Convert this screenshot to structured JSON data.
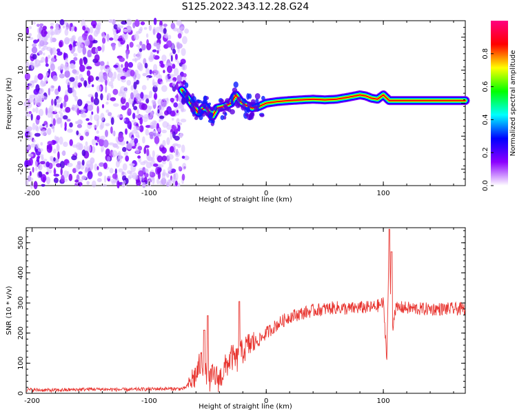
{
  "title": "S125.2022.343.12.28.G24",
  "chart_data": [
    {
      "type": "heatmap",
      "xlabel": "Height of straight line (km)",
      "ylabel": "Frequency (Hz)",
      "xlim": [
        -205,
        170
      ],
      "ylim": [
        -25,
        25
      ],
      "xticks": [
        -200,
        -100,
        0,
        100
      ],
      "xtick_labels": [
        "-200",
        "-100",
        "0",
        "100"
      ],
      "yticks": [
        -20,
        -10,
        0,
        10,
        20
      ],
      "ytick_labels": [
        "-20",
        "-10",
        "0",
        "10",
        "20"
      ],
      "colorbar": {
        "label": "Normalized spectral amplitude",
        "ticks": [
          0.0,
          0.2,
          0.4,
          0.6,
          0.8
        ],
        "tick_labels": [
          "0.0",
          "0.2",
          "0.4",
          "0.6",
          "0.8"
        ],
        "range": [
          0,
          1
        ],
        "colormap": [
          "#ffffff",
          "#8c00ff",
          "#0000ff",
          "#00ffff",
          "#00ff00",
          "#ffff00",
          "#ff0000",
          "#ff0080"
        ]
      },
      "noise_region_x": [
        -205,
        -68
      ],
      "ridge": {
        "x": [
          -72,
          -65,
          -58,
          -52,
          -46,
          -42,
          -36,
          -30,
          -26,
          -22,
          -18,
          -12,
          -6,
          0,
          10,
          20,
          30,
          40,
          50,
          60,
          70,
          80,
          85,
          90,
          95,
          100,
          105,
          110,
          130,
          150,
          170
        ],
        "freq": [
          4,
          0.5,
          -3,
          -1,
          -4,
          -1.5,
          -1,
          0,
          2.5,
          0.5,
          -0.5,
          -1.5,
          -1,
          0,
          0.5,
          0.8,
          1.0,
          1.2,
          1.0,
          1.2,
          1.8,
          2.5,
          2.2,
          1.5,
          1.2,
          2.5,
          0.8,
          0.8,
          0.8,
          0.8,
          0.8
        ]
      }
    },
    {
      "type": "line",
      "xlabel": "Height of straight line (km)",
      "ylabel": "SNR (10 * v/v)",
      "xlim": [
        -205,
        170
      ],
      "ylim": [
        0,
        550
      ],
      "xticks": [
        -200,
        -100,
        0,
        100
      ],
      "xtick_labels": [
        "-200",
        "-100",
        "0",
        "100"
      ],
      "yticks": [
        0,
        100,
        200,
        300,
        400,
        500
      ],
      "ytick_labels": [
        "0",
        "100",
        "200",
        "300",
        "400",
        "500"
      ],
      "color": "#e83530",
      "series": [
        {
          "x": [
            -205,
            -180,
            -150,
            -120,
            -90,
            -70,
            -60,
            -55,
            -50,
            -45,
            -40,
            -35,
            -30,
            -25,
            -20,
            -15,
            -10,
            -5,
            0,
            10,
            20,
            30,
            40,
            50,
            60,
            70,
            80,
            90,
            95,
            100,
            103,
            105,
            107,
            110,
            115,
            130,
            150,
            170
          ],
          "y": [
            12,
            10,
            14,
            12,
            15,
            15,
            60,
            110,
            35,
            60,
            45,
            85,
            120,
            110,
            140,
            160,
            170,
            180,
            200,
            230,
            255,
            265,
            275,
            280,
            285,
            280,
            285,
            285,
            290,
            300,
            120,
            520,
            190,
            280,
            285,
            280,
            280,
            280
          ]
        }
      ],
      "spikes": [
        {
          "x": -50,
          "y": 258
        },
        {
          "x": -53,
          "y": 210
        },
        {
          "x": -23,
          "y": 305
        },
        {
          "x": 105,
          "y": 545
        },
        {
          "x": 107,
          "y": 470
        }
      ]
    }
  ]
}
